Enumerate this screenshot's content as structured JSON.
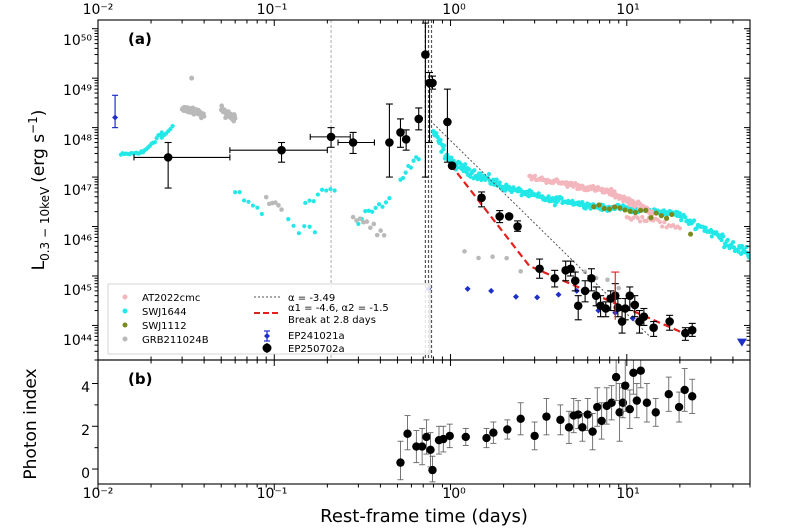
{
  "chart_data": [
    {
      "panel": "(a)",
      "type": "scatter",
      "xscale": "log",
      "yscale": "log",
      "xlim": [
        0.01,
        50
      ],
      "ylim": [
        2e+43,
        1.5e+50
      ],
      "xticks": [
        0.01,
        0.1,
        1,
        10
      ],
      "xtick_labels": [
        "10⁻²",
        "10⁻¹",
        "10⁰",
        "10¹"
      ],
      "yticks": [
        1e+44,
        1e+45,
        1e+46,
        1e+47,
        1e+48,
        1e+49,
        1e+50
      ],
      "ytick_labels": [
        "10⁴⁴",
        "10⁴⁵",
        "10⁴⁶",
        "10⁴⁷",
        "10⁴⁸",
        "10⁴⁹",
        "10⁵⁰"
      ],
      "ylabel": "L0.3-10keV (erg s⁻¹)",
      "ylabel_main": "L",
      "ylabel_sub": "0.3 − 10keV",
      "ylabel_unit": "(erg s",
      "ylabel_exp": "−1",
      "ylabel_close": ")",
      "legend_position": "bottom-left",
      "legend": {
        "at2022cmc": "AT2022cmc",
        "swj1644": "SWJ1644",
        "swj1112": "SWJ1112",
        "grb": "GRB211024B",
        "alpha": "α = -3.49",
        "break_line1": "α1 = -4.6, α2 = -1.5",
        "break_line2": "Break at 2.8 days",
        "ep241021a": "EP241021a",
        "ep250702a": "EP250702a"
      },
      "colors": {
        "at2022cmc": "#f4b6bd",
        "swj1644": "#22e8e8",
        "swj1112": "#7a8a1c",
        "grb": "#b9b9b9",
        "ep241021a": "#1f2fc9",
        "ep250702a": "#000000",
        "break_fit": "#e3211c",
        "alpha_fit": "#555555"
      },
      "vertical_lines": [
        0.21,
        0.72,
        0.75,
        0.78
      ],
      "series": [
        {
          "name": "EP250702a",
          "points": [
            [
              0.025,
              2.5e+47,
              0.016,
              0.056,
              6e+46,
              5e+47
            ],
            [
              0.11,
              3.5e+47,
              0.056,
              0.2,
              2e+47,
              5e+47
            ],
            [
              0.21,
              6.5e+47,
              0.16,
              0.27,
              4e+47,
              1e+48
            ],
            [
              0.28,
              5e+47,
              0.23,
              0.37,
              3e+47,
              8e+47
            ],
            [
              0.45,
              5e+47,
              null,
              null,
              1e+47,
              3e+48
            ],
            [
              0.52,
              8e+47,
              null,
              null,
              4e+47,
              1.5e+48
            ],
            [
              0.56,
              5.8e+47,
              null,
              null,
              3.5e+47,
              9e+47
            ],
            [
              0.66,
              1.5e+48,
              null,
              null,
              9e+47,
              2.5e+48
            ],
            [
              0.72,
              3e+49,
              null,
              null,
              1e+47,
              1.3e+50
            ],
            [
              0.76,
              8e+48,
              null,
              null,
              5e+47,
              1.3e+49
            ],
            [
              0.79,
              8e+48,
              null,
              null,
              6e+48,
              1.1e+49
            ],
            [
              0.96,
              1.3e+48,
              null,
              null,
              2e+47,
              6e+48
            ],
            [
              1.02,
              1.7e+47,
              null,
              null,
              null,
              null
            ],
            [
              1.5,
              3.8e+46,
              null,
              null,
              2.5e+46,
              5e+46
            ],
            [
              1.9,
              1.6e+46,
              null,
              null,
              1.2e+46,
              2.1e+46
            ],
            [
              2.15,
              1.6e+46,
              null,
              null,
              null,
              null
            ],
            [
              2.4,
              1e+46,
              null,
              null,
              8e+45,
              1.3e+46
            ],
            [
              3.2,
              1.4e+45,
              null,
              null,
              9e+44,
              2.2e+45
            ],
            [
              3.9,
              9e+44,
              null,
              null,
              6e+44,
              1.3e+45
            ],
            [
              4.5,
              1.3e+45,
              null,
              null,
              8e+44,
              2e+45
            ],
            [
              4.8,
              1.4e+45,
              null,
              null,
              1e+45,
              2e+45
            ],
            [
              5.1,
              8e+44,
              null,
              null,
              5e+44,
              1.2e+45
            ],
            [
              5.3,
              2.5e+44,
              null,
              null,
              1.3e+44,
              4e+44
            ],
            [
              5.8,
              5e+44,
              null,
              null,
              3e+44,
              8e+44
            ],
            [
              6.3,
              9e+44,
              null,
              null,
              5e+44,
              1.4e+45
            ],
            [
              6.7,
              4e+44,
              null,
              null,
              2.5e+44,
              6e+44
            ],
            [
              7.1,
              2.5e+44,
              null,
              null,
              1.5e+44,
              4e+44
            ],
            [
              7.6,
              2.2e+44,
              null,
              null,
              1.5e+44,
              3e+44
            ],
            [
              8.1,
              3.5e+44,
              null,
              null,
              2e+44,
              5e+44
            ],
            [
              8.6,
              4e+44,
              null,
              null,
              2e+44,
              7e+44
            ],
            [
              8.9,
              2.3e+44,
              null,
              null,
              1.5e+44,
              3.5e+44
            ],
            [
              9.4,
              1.2e+44,
              null,
              null,
              7e+43,
              2e+44
            ],
            [
              9.8,
              2.2e+44,
              null,
              null,
              1.3e+44,
              3.5e+44
            ],
            [
              10.4,
              4e+44,
              null,
              null,
              2e+44,
              6e+44
            ],
            [
              11.1,
              2.6e+44,
              null,
              null,
              1.5e+44,
              4e+44
            ],
            [
              11.8,
              1.2e+44,
              null,
              null,
              7e+43,
              2e+44
            ],
            [
              12.5,
              1.5e+44,
              null,
              null,
              1e+44,
              2.2e+44
            ],
            [
              14.2,
              9e+43,
              null,
              null,
              6e+43,
              1.2e+44
            ],
            [
              17.5,
              1.2e+44,
              null,
              null,
              8e+43,
              1.6e+44
            ],
            [
              21.5,
              7e+43,
              null,
              null,
              5e+43,
              9e+43
            ],
            [
              23.5,
              8e+43,
              null,
              null,
              6e+43,
              1.1e+44
            ]
          ]
        },
        {
          "name": "EP241021a",
          "points": [
            [
              0.0125,
              1.6e+48,
              1e+48,
              4.5e+48
            ],
            [
              0.75,
              5.5e+44,
              null,
              null
            ],
            [
              1.25,
              5.5e+44,
              null,
              null
            ],
            [
              1.7,
              5e+44,
              null,
              null
            ],
            [
              2.35,
              3.8e+44,
              null,
              null
            ],
            [
              3.1,
              3.7e+44,
              null,
              null
            ],
            [
              4.1,
              4.2e+44,
              null,
              null
            ],
            [
              5.2,
              5e+44,
              null,
              null
            ],
            [
              6.9,
              2e+44,
              null,
              null
            ],
            [
              8.6,
              1.8e+44,
              null,
              null
            ],
            [
              10.8,
              1.4e+44,
              null,
              null
            ]
          ]
        },
        {
          "name": "EP241021a upper limit",
          "points": [
            [
              45,
              4.5e+43
            ]
          ]
        }
      ],
      "fit_lines": [
        {
          "name": "α = -3.49",
          "style": "dotted",
          "points": [
            [
              0.8,
              1.2e+48
            ],
            [
              13.5,
              6e+43
            ]
          ]
        },
        {
          "name": "α1 = -4.6, α2 = -1.5",
          "style": "dashed",
          "points": [
            [
              1.0,
              1.8e+47
            ],
            [
              2.8,
              1.6e+45
            ],
            [
              22,
              6.5e+43
            ]
          ]
        }
      ]
    },
    {
      "panel": "(b)",
      "type": "scatter",
      "xscale": "log",
      "xlim": [
        0.01,
        50
      ],
      "ylim": [
        -0.7,
        5.1
      ],
      "yticks": [
        0,
        2,
        4
      ],
      "ytick_labels": [
        "0",
        "2",
        "4"
      ],
      "xtick_labels": [
        "10⁻²",
        "10⁻¹",
        "10⁰",
        "10¹"
      ],
      "xlabel": "Rest-frame time (days)",
      "ylabel": "Photon index",
      "series": [
        {
          "name": "EP250702a",
          "points": [
            [
              0.52,
              0.3,
              -0.5,
              1.3
            ],
            [
              0.57,
              1.65,
              0.9,
              2.5
            ],
            [
              0.64,
              1.05,
              0.3,
              1.8
            ],
            [
              0.69,
              1.05,
              0.2,
              1.9
            ],
            [
              0.73,
              1.5,
              0.7,
              2.3
            ],
            [
              0.77,
              0.9,
              0.1,
              1.7
            ],
            [
              0.79,
              -0.05,
              -0.6,
              0.6
            ],
            [
              0.86,
              1.35,
              0.7,
              2.0
            ],
            [
              0.91,
              1.4,
              0.8,
              2.0
            ],
            [
              0.99,
              1.55,
              1.0,
              2.1
            ],
            [
              1.22,
              1.5,
              1.1,
              1.9
            ],
            [
              1.6,
              1.45,
              1.0,
              1.9
            ],
            [
              1.75,
              1.7,
              1.2,
              2.2
            ],
            [
              2.1,
              1.85,
              1.4,
              2.3
            ],
            [
              2.5,
              2.35,
              1.6,
              3.1
            ],
            [
              3.0,
              1.55,
              0.9,
              2.2
            ],
            [
              3.5,
              2.45,
              1.6,
              3.3
            ],
            [
              4.2,
              2.3,
              1.6,
              3.0
            ],
            [
              4.7,
              1.95,
              1.2,
              2.7
            ],
            [
              5.0,
              2.5,
              1.7,
              3.3
            ],
            [
              5.3,
              2.55,
              1.9,
              3.2
            ],
            [
              5.6,
              1.95,
              1.3,
              2.6
            ],
            [
              6.0,
              2.55,
              1.8,
              3.3
            ],
            [
              6.4,
              1.75,
              0.9,
              2.6
            ],
            [
              6.8,
              2.9,
              2.0,
              3.8
            ],
            [
              7.2,
              2.25,
              1.4,
              3.1
            ],
            [
              7.7,
              2.95,
              2.1,
              3.8
            ],
            [
              8.2,
              3.1,
              2.3,
              3.9
            ],
            [
              8.7,
              4.3,
              3.2,
              5.1
            ],
            [
              9.1,
              2.65,
              1.3,
              4.0
            ],
            [
              9.5,
              3.1,
              2.4,
              3.8
            ],
            [
              9.8,
              3.9,
              2.7,
              5.1
            ],
            [
              10.4,
              2.8,
              1.9,
              3.7
            ],
            [
              10.9,
              4.5,
              3.5,
              5.1
            ],
            [
              11.4,
              3.2,
              2.4,
              4.0
            ],
            [
              12.0,
              4.6,
              3.8,
              5.1
            ],
            [
              13.0,
              3.1,
              2.2,
              4.0
            ],
            [
              14.6,
              2.65,
              2.0,
              3.3
            ],
            [
              17.3,
              3.5,
              2.7,
              4.3
            ],
            [
              19.8,
              2.9,
              2.2,
              3.6
            ],
            [
              21.3,
              3.7,
              2.7,
              4.7
            ],
            [
              23.5,
              3.4,
              2.6,
              4.2
            ]
          ]
        }
      ]
    }
  ]
}
